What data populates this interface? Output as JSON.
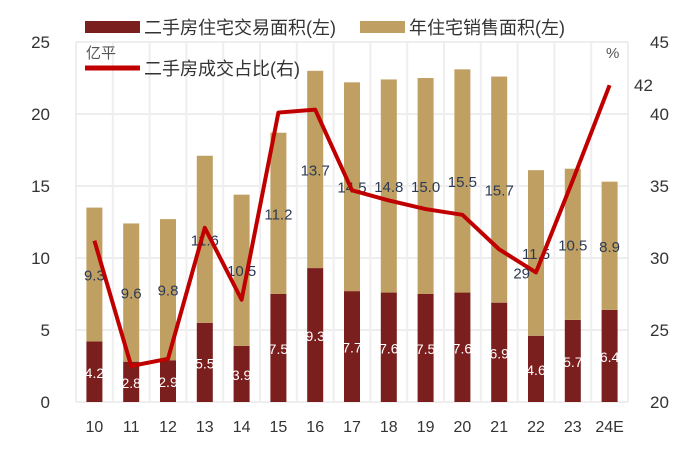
{
  "chart_data": {
    "type": "bar",
    "categories": [
      "10",
      "11",
      "12",
      "13",
      "14",
      "15",
      "16",
      "17",
      "18",
      "19",
      "20",
      "21",
      "22",
      "23",
      "24E"
    ],
    "series": [
      {
        "name": "二手房住宅交易面积(左)",
        "kind": "bar-stack-bottom",
        "axis": "left",
        "color": "#7B1E1E",
        "values": [
          4.2,
          2.8,
          2.9,
          5.5,
          3.9,
          7.5,
          9.3,
          7.7,
          7.6,
          7.5,
          7.6,
          6.9,
          4.6,
          5.7,
          6.4
        ]
      },
      {
        "name": "年住宅销售面积(左)",
        "kind": "bar-stack-top",
        "axis": "left",
        "color": "#C0A062",
        "values": [
          9.3,
          9.6,
          9.8,
          11.6,
          10.5,
          11.2,
          13.7,
          14.5,
          14.8,
          15.0,
          15.5,
          15.7,
          11.5,
          10.5,
          8.9
        ]
      },
      {
        "name": "二手房成交占比(右)",
        "kind": "line",
        "axis": "right",
        "color": "#C00000",
        "values": [
          31.2,
          22.5,
          23.0,
          32.1,
          27.1,
          40.1,
          40.3,
          34.7,
          34.0,
          33.4,
          33.0,
          30.6,
          29,
          35.4,
          42
        ]
      }
    ],
    "line_labels": [
      {
        "index": 12,
        "text": "29"
      },
      {
        "index": 14,
        "text": "42"
      }
    ],
    "left_axis": {
      "unit": "亿平",
      "ylim": [
        0,
        25
      ],
      "ticks": [
        "0",
        "5",
        "10",
        "15",
        "20",
        "25"
      ]
    },
    "right_axis": {
      "unit": "%",
      "ylim": [
        20,
        45
      ],
      "ticks": [
        "20",
        "25",
        "30",
        "35",
        "40",
        "45"
      ]
    },
    "grid": true,
    "legend_position": "top"
  }
}
